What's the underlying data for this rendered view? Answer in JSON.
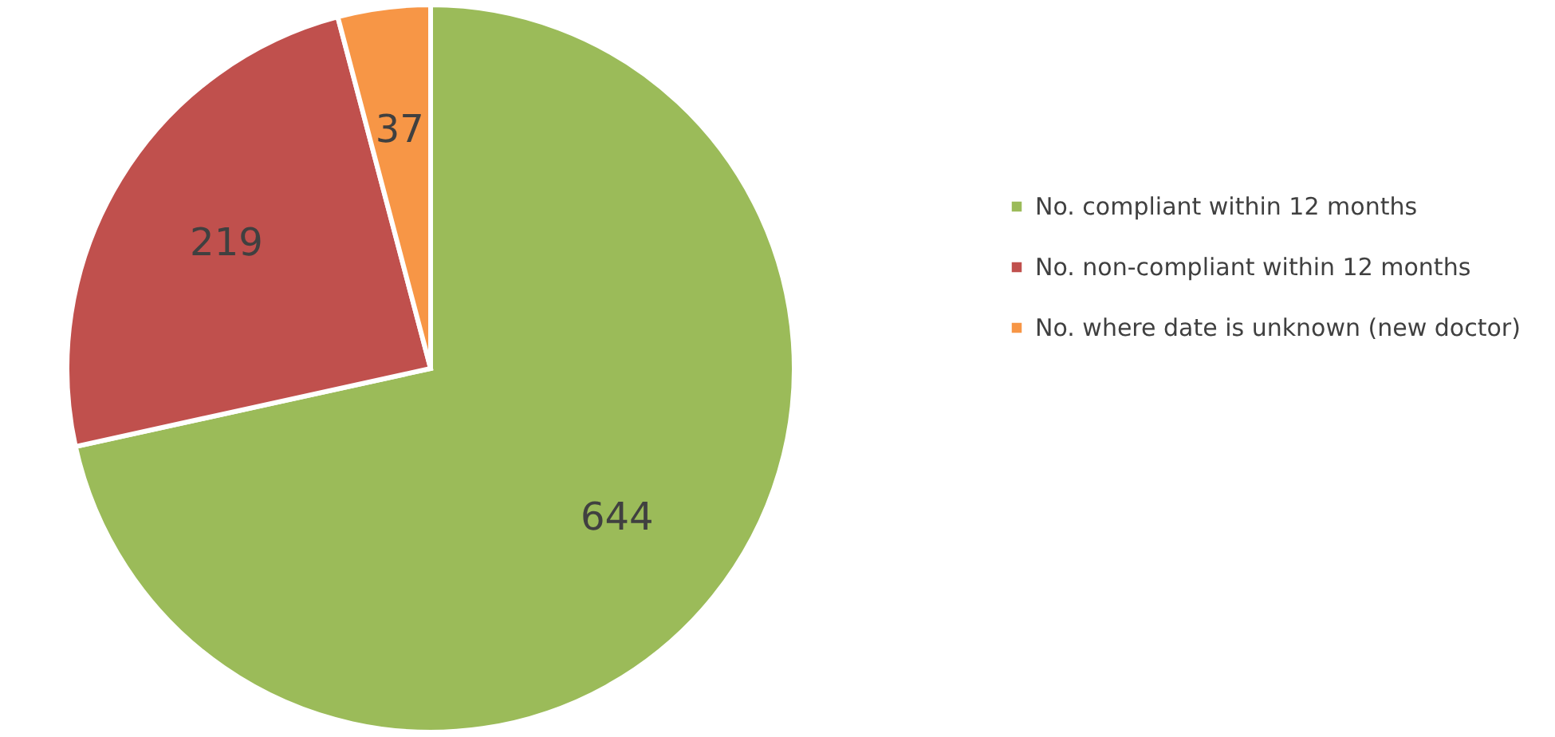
{
  "chart_data": {
    "type": "pie",
    "categories": [
      "No. compliant within 12 months",
      "No. non-compliant within 12 months",
      "No. where date is unknown (new doctor)"
    ],
    "values": [
      644,
      219,
      37
    ],
    "colors": [
      "#9bbb59",
      "#c0504d",
      "#f79646"
    ],
    "data_labels": true,
    "legend": "right"
  }
}
